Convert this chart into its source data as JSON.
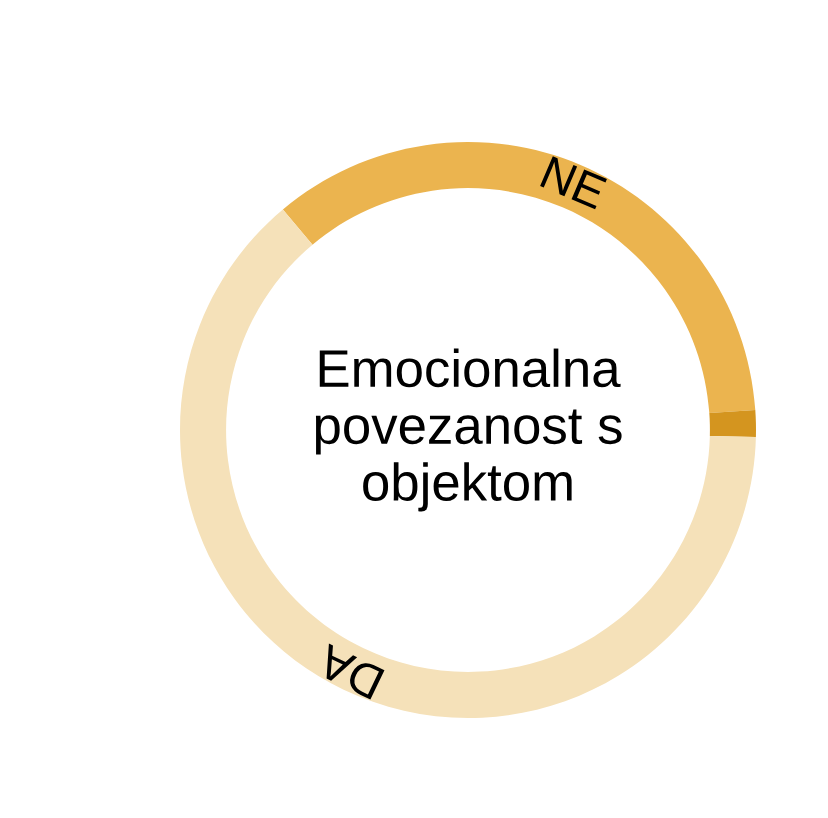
{
  "chart_data": {
    "type": "donut",
    "title": "Emocionalna povezanost s objektom",
    "categories": [
      "NE",
      null,
      "DA"
    ],
    "values": [
      35,
      1.5,
      63.5
    ],
    "colors": [
      "#ebb44f",
      "#d4951f",
      "#f5e1b9"
    ]
  }
}
